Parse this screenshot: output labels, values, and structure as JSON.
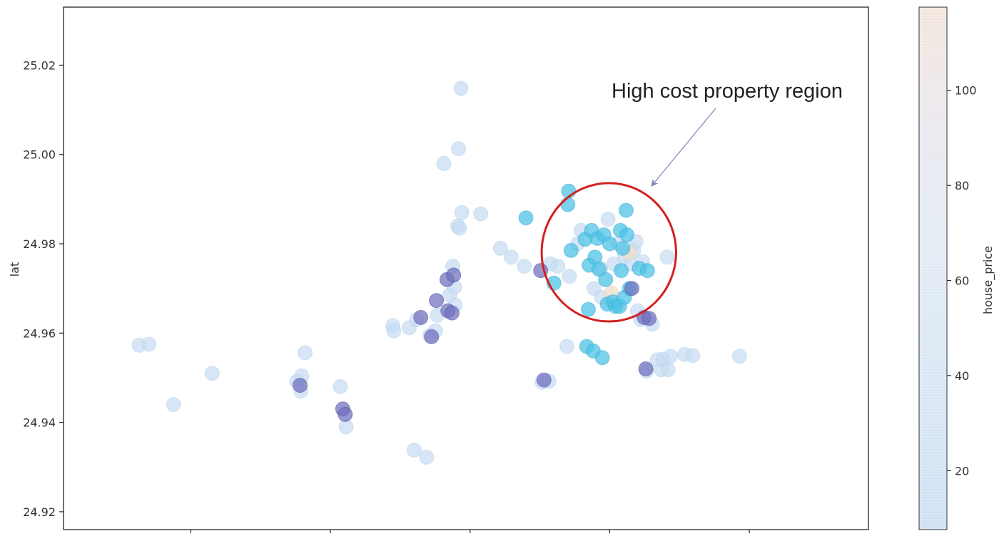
{
  "chart_data": {
    "type": "scatter",
    "title": "",
    "xlabel": "",
    "ylabel": "lat",
    "ylim": [
      24.916,
      25.033
    ],
    "xlim": [
      121.4675,
      121.5655
    ],
    "y_ticks": [
      "24.92",
      "24.94",
      "24.96",
      "24.98",
      "25.00",
      "25.02"
    ],
    "x_tick_positions": [
      121.483,
      121.5,
      121.517,
      121.534,
      121.551
    ],
    "grid": false,
    "colorbar": {
      "label": "house_price",
      "ticks": [
        "20",
        "40",
        "60",
        "80",
        "100"
      ],
      "range": [
        7.6,
        117.5
      ],
      "colors": [
        "#cfe0f3",
        "#d8e6f4",
        "#e3ecf5",
        "#ece8ee",
        "#f2e6dc"
      ]
    },
    "annotation": {
      "text": "High cost property region",
      "circle_center": [
        121.5339,
        24.9781
      ],
      "circle_radius_lat": 0.0155
    },
    "dot_colors": {
      "light": "#c5dcf2",
      "cyan": "#4ec3e6",
      "purple": "#6f6fbd",
      "peach": "#f0e0cc"
    },
    "points": [
      {
        "x": 121.4767,
        "y": 24.9573,
        "c": "light"
      },
      {
        "x": 121.4779,
        "y": 24.9575,
        "c": "light"
      },
      {
        "x": 121.4809,
        "y": 24.944,
        "c": "light"
      },
      {
        "x": 121.4856,
        "y": 24.951,
        "c": "light"
      },
      {
        "x": 121.4959,
        "y": 24.9492,
        "c": "light"
      },
      {
        "x": 121.4963,
        "y": 24.9483,
        "c": "purple"
      },
      {
        "x": 121.4964,
        "y": 24.947,
        "c": "light"
      },
      {
        "x": 121.4965,
        "y": 24.9504,
        "c": "light"
      },
      {
        "x": 121.4969,
        "y": 24.9556,
        "c": "light"
      },
      {
        "x": 121.5012,
        "y": 24.948,
        "c": "light"
      },
      {
        "x": 121.5015,
        "y": 24.943,
        "c": "purple"
      },
      {
        "x": 121.5018,
        "y": 24.9418,
        "c": "purple"
      },
      {
        "x": 121.5019,
        "y": 24.939,
        "c": "light"
      },
      {
        "x": 121.5076,
        "y": 24.9617,
        "c": "light"
      },
      {
        "x": 121.5077,
        "y": 24.9605,
        "c": "light"
      },
      {
        "x": 121.5096,
        "y": 24.9612,
        "c": "light"
      },
      {
        "x": 121.5105,
        "y": 24.963,
        "c": "light"
      },
      {
        "x": 121.511,
        "y": 24.9635,
        "c": "purple"
      },
      {
        "x": 121.5102,
        "y": 24.9338,
        "c": "light"
      },
      {
        "x": 121.5117,
        "y": 24.9322,
        "c": "light"
      },
      {
        "x": 121.5121,
        "y": 24.9595,
        "c": "light"
      },
      {
        "x": 121.5123,
        "y": 24.9592,
        "c": "purple"
      },
      {
        "x": 121.5128,
        "y": 24.9605,
        "c": "light"
      },
      {
        "x": 121.5129,
        "y": 24.9673,
        "c": "purple"
      },
      {
        "x": 121.513,
        "y": 24.964,
        "c": "light"
      },
      {
        "x": 121.5138,
        "y": 24.998,
        "c": "light"
      },
      {
        "x": 121.5142,
        "y": 24.972,
        "c": "purple"
      },
      {
        "x": 121.5143,
        "y": 24.965,
        "c": "purple"
      },
      {
        "x": 121.5145,
        "y": 24.9685,
        "c": "light"
      },
      {
        "x": 121.5148,
        "y": 24.9645,
        "c": "purple"
      },
      {
        "x": 121.5149,
        "y": 24.975,
        "c": "light"
      },
      {
        "x": 121.515,
        "y": 24.973,
        "c": "purple"
      },
      {
        "x": 121.5151,
        "y": 24.9703,
        "c": "light"
      },
      {
        "x": 121.5152,
        "y": 24.9663,
        "c": "light"
      },
      {
        "x": 121.5155,
        "y": 24.984,
        "c": "light"
      },
      {
        "x": 121.5156,
        "y": 25.0013,
        "c": "light"
      },
      {
        "x": 121.5157,
        "y": 24.9835,
        "c": "light"
      },
      {
        "x": 121.516,
        "y": 24.987,
        "c": "light"
      },
      {
        "x": 121.5159,
        "y": 25.0148,
        "c": "light"
      },
      {
        "x": 121.5183,
        "y": 24.9867,
        "c": "light"
      },
      {
        "x": 121.5207,
        "y": 24.979,
        "c": "light"
      },
      {
        "x": 121.522,
        "y": 24.977,
        "c": "light"
      },
      {
        "x": 121.5236,
        "y": 24.975,
        "c": "light"
      },
      {
        "x": 121.5238,
        "y": 24.9858,
        "c": "cyan"
      },
      {
        "x": 121.5256,
        "y": 24.974,
        "c": "purple"
      },
      {
        "x": 121.5258,
        "y": 24.949,
        "c": "light"
      },
      {
        "x": 121.526,
        "y": 24.9495,
        "c": "purple"
      },
      {
        "x": 121.5266,
        "y": 24.9492,
        "c": "light"
      },
      {
        "x": 121.5268,
        "y": 24.9755,
        "c": "light"
      },
      {
        "x": 121.5272,
        "y": 24.9712,
        "c": "cyan"
      },
      {
        "x": 121.5277,
        "y": 24.975,
        "c": "light"
      },
      {
        "x": 121.5288,
        "y": 24.957,
        "c": "light"
      },
      {
        "x": 121.5289,
        "y": 24.9888,
        "c": "cyan"
      },
      {
        "x": 121.529,
        "y": 24.9918,
        "c": "cyan"
      },
      {
        "x": 121.5291,
        "y": 24.9727,
        "c": "light"
      },
      {
        "x": 121.5293,
        "y": 24.9785,
        "c": "cyan"
      },
      {
        "x": 121.5301,
        "y": 24.98,
        "c": "light"
      },
      {
        "x": 121.5305,
        "y": 24.983,
        "c": "light"
      },
      {
        "x": 121.531,
        "y": 24.981,
        "c": "cyan"
      },
      {
        "x": 121.5312,
        "y": 24.957,
        "c": "cyan"
      },
      {
        "x": 121.5314,
        "y": 24.9653,
        "c": "cyan"
      },
      {
        "x": 121.5315,
        "y": 24.9752,
        "c": "cyan"
      },
      {
        "x": 121.5318,
        "y": 24.983,
        "c": "cyan"
      },
      {
        "x": 121.532,
        "y": 24.956,
        "c": "cyan"
      },
      {
        "x": 121.5321,
        "y": 24.97,
        "c": "light"
      },
      {
        "x": 121.5322,
        "y": 24.977,
        "c": "cyan"
      },
      {
        "x": 121.5325,
        "y": 24.9812,
        "c": "cyan"
      },
      {
        "x": 121.5327,
        "y": 24.9743,
        "c": "cyan"
      },
      {
        "x": 121.5329,
        "y": 24.9745,
        "c": "light"
      },
      {
        "x": 121.533,
        "y": 24.968,
        "c": "light"
      },
      {
        "x": 121.5331,
        "y": 24.9545,
        "c": "cyan"
      },
      {
        "x": 121.5333,
        "y": 24.982,
        "c": "cyan"
      },
      {
        "x": 121.5335,
        "y": 24.972,
        "c": "cyan"
      },
      {
        "x": 121.5337,
        "y": 24.9665,
        "c": "cyan"
      },
      {
        "x": 121.5338,
        "y": 24.9855,
        "c": "light"
      },
      {
        "x": 121.534,
        "y": 24.98,
        "c": "cyan"
      },
      {
        "x": 121.5342,
        "y": 24.969,
        "c": "peach"
      },
      {
        "x": 121.5344,
        "y": 24.967,
        "c": "cyan"
      },
      {
        "x": 121.5345,
        "y": 24.9755,
        "c": "light"
      },
      {
        "x": 121.5347,
        "y": 24.966,
        "c": "cyan"
      },
      {
        "x": 121.535,
        "y": 24.98,
        "c": "light"
      },
      {
        "x": 121.5352,
        "y": 24.966,
        "c": "cyan"
      },
      {
        "x": 121.5353,
        "y": 24.983,
        "c": "cyan"
      },
      {
        "x": 121.5354,
        "y": 24.974,
        "c": "cyan"
      },
      {
        "x": 121.5356,
        "y": 24.979,
        "c": "cyan"
      },
      {
        "x": 121.5358,
        "y": 24.977,
        "c": "light"
      },
      {
        "x": 121.5358,
        "y": 24.968,
        "c": "cyan"
      },
      {
        "x": 121.536,
        "y": 24.9875,
        "c": "cyan"
      },
      {
        "x": 121.5361,
        "y": 24.982,
        "c": "cyan"
      },
      {
        "x": 121.5363,
        "y": 24.978,
        "c": "peach"
      },
      {
        "x": 121.5364,
        "y": 24.97,
        "c": "cyan"
      },
      {
        "x": 121.5366,
        "y": 24.9755,
        "c": "light"
      },
      {
        "x": 121.5367,
        "y": 24.97,
        "c": "purple"
      },
      {
        "x": 121.5369,
        "y": 24.9785,
        "c": "light"
      },
      {
        "x": 121.5372,
        "y": 24.9805,
        "c": "light"
      },
      {
        "x": 121.5374,
        "y": 24.965,
        "c": "light"
      },
      {
        "x": 121.5376,
        "y": 24.9745,
        "c": "cyan"
      },
      {
        "x": 121.5378,
        "y": 24.963,
        "c": "light"
      },
      {
        "x": 121.538,
        "y": 24.976,
        "c": "light"
      },
      {
        "x": 121.5382,
        "y": 24.9635,
        "c": "purple"
      },
      {
        "x": 121.5384,
        "y": 24.952,
        "c": "purple"
      },
      {
        "x": 121.5385,
        "y": 24.9515,
        "c": "light"
      },
      {
        "x": 121.5386,
        "y": 24.974,
        "c": "cyan"
      },
      {
        "x": 121.5388,
        "y": 24.9633,
        "c": "purple"
      },
      {
        "x": 121.5392,
        "y": 24.962,
        "c": "light"
      },
      {
        "x": 121.5398,
        "y": 24.954,
        "c": "light"
      },
      {
        "x": 121.5403,
        "y": 24.9518,
        "c": "light"
      },
      {
        "x": 121.5405,
        "y": 24.9542,
        "c": "light"
      },
      {
        "x": 121.541,
        "y": 24.977,
        "c": "light"
      },
      {
        "x": 121.5411,
        "y": 24.9518,
        "c": "light"
      },
      {
        "x": 121.5414,
        "y": 24.9548,
        "c": "light"
      },
      {
        "x": 121.5431,
        "y": 24.9552,
        "c": "light"
      },
      {
        "x": 121.5441,
        "y": 24.955,
        "c": "light"
      },
      {
        "x": 121.5498,
        "y": 24.9548,
        "c": "light"
      }
    ]
  }
}
